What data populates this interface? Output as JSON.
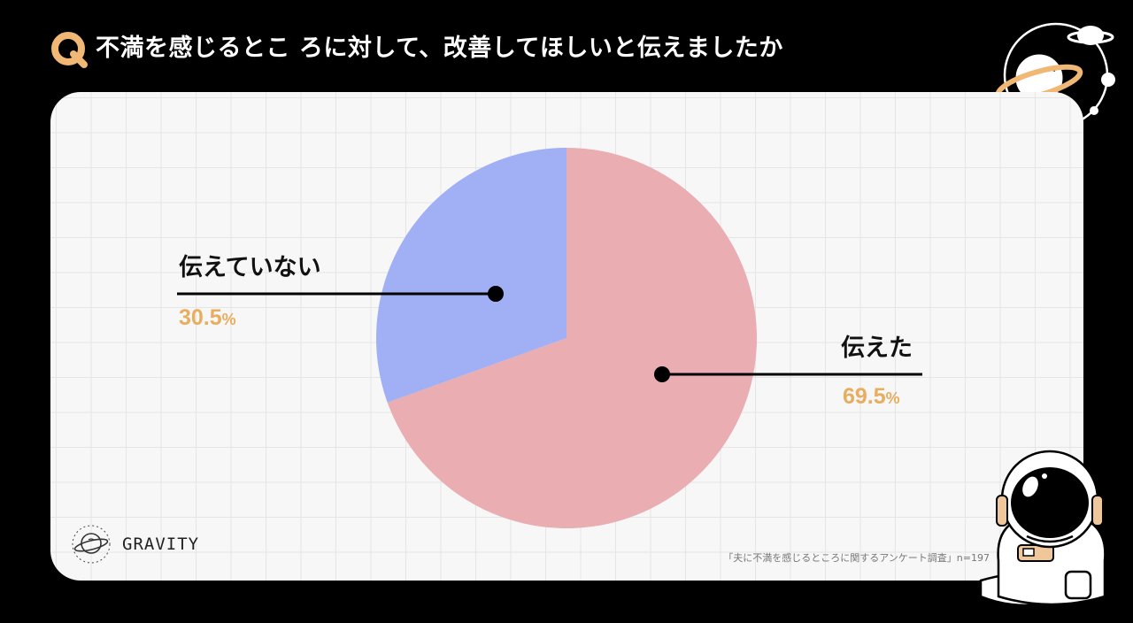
{
  "header": {
    "q_letter": "Q",
    "title": "不満を感じるとこ ろに対して、改善してほしいと伝えましたか"
  },
  "chart_data": {
    "type": "pie",
    "title": "不満を感じるとこ ろに対して、改善してほしいと伝えましたか",
    "slices": [
      {
        "label": "伝えた",
        "value": 69.5,
        "value_text": "69.5",
        "unit": "%"
      },
      {
        "label": "伝えていない",
        "value": 30.5,
        "value_text": "30.5",
        "unit": "%"
      }
    ],
    "start_angle": "12 o'clock, clockwise",
    "legend": "none",
    "colors": {
      "伝えた": "#e9adb2",
      "伝えていない": "#a1b0f4"
    }
  },
  "brand": {
    "name": "GRAVITY",
    "icon": "planet-logo-icon"
  },
  "source_note": "「夫に不満を感じるところに関するアンケート調査」n=197",
  "colors": {
    "background": "#000000",
    "card": "#f7f7f7",
    "accent": "#e8ad5e",
    "grid": "#e5e5e5"
  },
  "decorations": {
    "top_right": "planet-orbit-icon",
    "bottom_right": "astronaut-icon"
  }
}
